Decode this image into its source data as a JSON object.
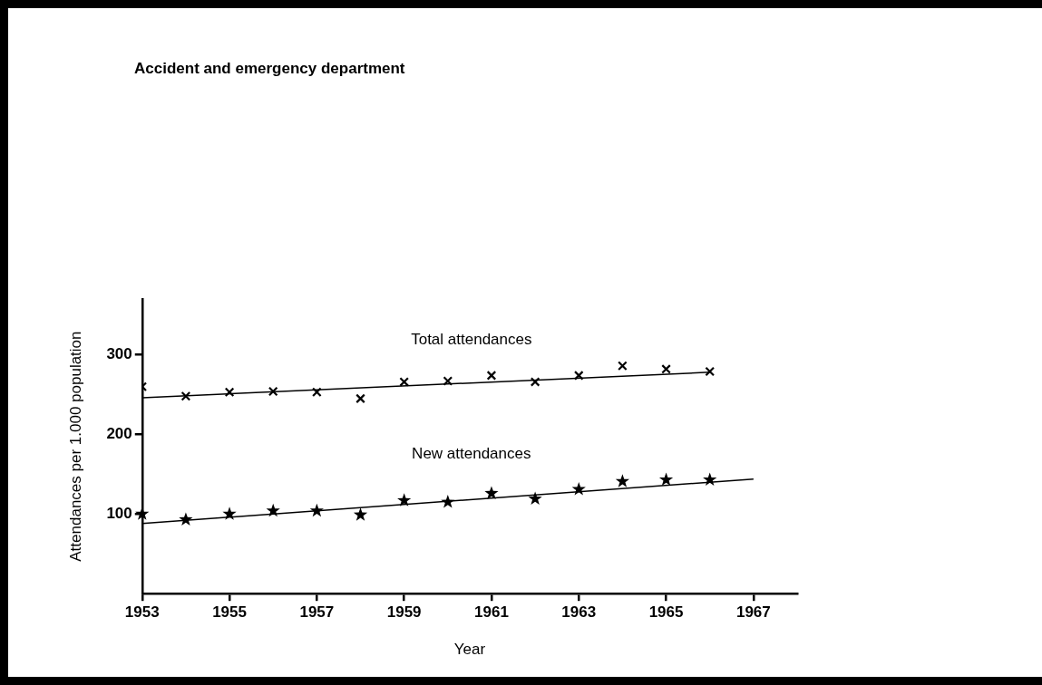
{
  "chart_data": {
    "type": "scatter",
    "title": "Accident and emergency department",
    "xlabel": "Year",
    "ylabel": "Attendances per 1.000 population",
    "x": [
      1953,
      1954,
      1955,
      1956,
      1957,
      1958,
      1959,
      1960,
      1961,
      1962,
      1963,
      1964,
      1965,
      1966
    ],
    "series": [
      {
        "name": "Total attendances",
        "type": "scatter",
        "marker": "cross",
        "color": "#000000",
        "values": [
          260,
          248,
          253,
          254,
          253,
          245,
          266,
          267,
          274,
          266,
          274,
          286,
          282,
          279
        ]
      },
      {
        "type": "line",
        "marker": "none",
        "color": "#000000",
        "x": [
          1953,
          1966
        ],
        "values": [
          246,
          278
        ]
      },
      {
        "name": "New attendances",
        "type": "scatter",
        "marker": "star",
        "color": "#000000",
        "values": [
          100,
          93,
          100,
          104,
          104,
          99,
          117,
          115,
          126,
          119,
          131,
          141,
          143,
          143
        ]
      },
      {
        "type": "line",
        "marker": "none",
        "color": "#000000",
        "x": [
          1953,
          1967
        ],
        "values": [
          88,
          144
        ]
      }
    ],
    "xlim": [
      1953,
      1968
    ],
    "xticks": [
      1953,
      1955,
      1957,
      1959,
      1961,
      1963,
      1965,
      1967
    ],
    "ylim": [
      0,
      370
    ],
    "yticks": [
      100,
      200,
      300
    ],
    "grid": false,
    "legend": false,
    "line_style": "solid"
  }
}
